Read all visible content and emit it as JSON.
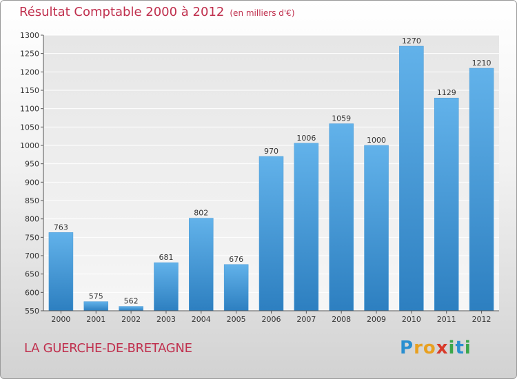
{
  "header": {
    "title": "Résultat Comptable 2000 à 2012",
    "subtitle": "(en milliers d'€)"
  },
  "footer": {
    "city": "LA GUERCHE-DE-BRETAGNE",
    "logo_letters": [
      "P",
      "r",
      "o",
      "x",
      "i",
      "t",
      "i"
    ],
    "logo_colors": [
      "#2a8fd0",
      "#e8a020",
      "#e8a020",
      "#d83a2a",
      "#3aa64a",
      "#2a8fd0",
      "#3aa64a"
    ]
  },
  "chart_data": {
    "type": "bar",
    "categories": [
      "2000",
      "2001",
      "2002",
      "2003",
      "2004",
      "2005",
      "2006",
      "2007",
      "2008",
      "2009",
      "2010",
      "2011",
      "2012"
    ],
    "values": [
      763,
      575,
      562,
      681,
      802,
      676,
      970,
      1006,
      1059,
      1000,
      1270,
      1129,
      1210
    ],
    "ylim": [
      550,
      1300
    ],
    "yticks": [
      550,
      600,
      650,
      700,
      750,
      800,
      850,
      900,
      950,
      1000,
      1050,
      1100,
      1150,
      1200,
      1250,
      1300
    ],
    "grid": true,
    "bar_color": "#5aabe3"
  }
}
